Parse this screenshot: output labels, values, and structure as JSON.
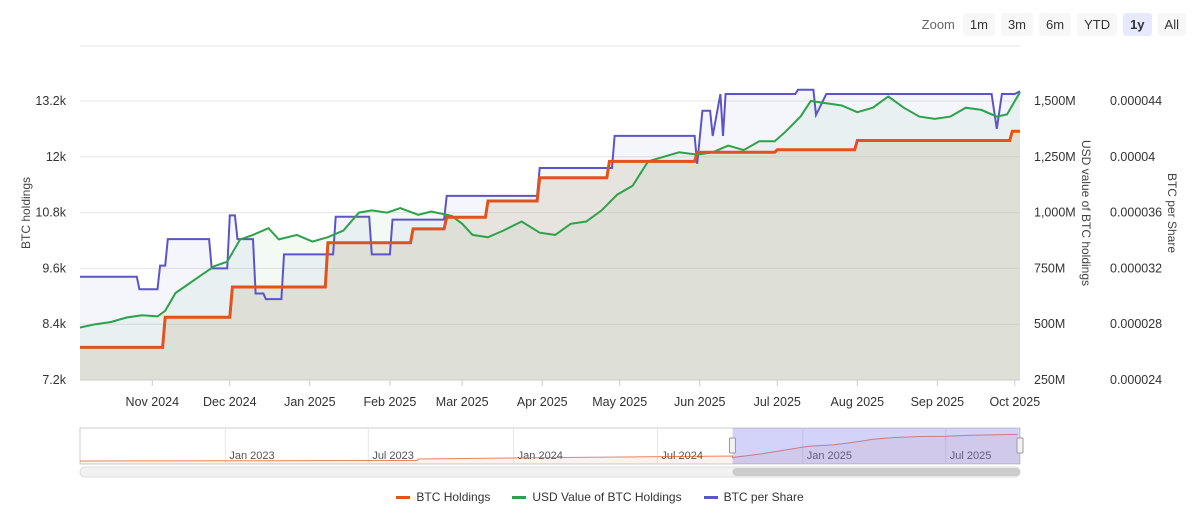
{
  "zoom": {
    "label": "Zoom",
    "buttons": [
      "1m",
      "3m",
      "6m",
      "YTD",
      "1y",
      "All"
    ],
    "active": "1y"
  },
  "chart_data": {
    "type": "line",
    "x_ticks": [
      "Nov 2024",
      "Dec 2024",
      "Jan 2025",
      "Feb 2025",
      "Mar 2025",
      "Apr 2025",
      "May 2025",
      "Jun 2025",
      "Jul 2025",
      "Aug 2025",
      "Sep 2025",
      "Oct 2025"
    ],
    "x_range": [
      "2024-10-04",
      "2025-10-03"
    ],
    "y_axes": [
      {
        "label": "BTC holdings",
        "position": "left",
        "range": [
          7200,
          13200
        ],
        "ticks": [
          "7.2k",
          "8.4k",
          "9.6k",
          "10.8k",
          "12k",
          "13.2k"
        ]
      },
      {
        "label": "USD value of BTC holdings",
        "position": "right-inner",
        "range": [
          250,
          1500
        ],
        "ticks": [
          "250M",
          "500M",
          "750M",
          "1,000M",
          "1,250M",
          "1,500M"
        ]
      },
      {
        "label": "BTC per Share",
        "position": "right-outer",
        "range": [
          2.4e-05,
          4.4e-05
        ],
        "ticks": [
          "0.000024",
          "0.000028",
          "0.000032",
          "0.000036",
          "0.00004",
          "0.000044"
        ]
      }
    ],
    "series": [
      {
        "name": "BTC Holdings",
        "color": "#e0531c",
        "axis": 0,
        "step": true,
        "points": [
          [
            "2024-10-04",
            7900
          ],
          [
            "2024-11-05",
            7900
          ],
          [
            "2024-11-06",
            8550
          ],
          [
            "2024-12-01",
            8550
          ],
          [
            "2024-12-02",
            9200
          ],
          [
            "2025-01-07",
            9200
          ],
          [
            "2025-01-08",
            10150
          ],
          [
            "2025-02-09",
            10150
          ],
          [
            "2025-02-10",
            10450
          ],
          [
            "2025-02-22",
            10450
          ],
          [
            "2025-02-23",
            10700
          ],
          [
            "2025-03-10",
            10700
          ],
          [
            "2025-03-11",
            11050
          ],
          [
            "2025-03-30",
            11050
          ],
          [
            "2025-03-31",
            11550
          ],
          [
            "2025-04-26",
            11550
          ],
          [
            "2025-04-27",
            11900
          ],
          [
            "2025-05-30",
            11900
          ],
          [
            "2025-05-31",
            12100
          ],
          [
            "2025-06-30",
            12100
          ],
          [
            "2025-07-01",
            12150
          ],
          [
            "2025-07-31",
            12150
          ],
          [
            "2025-08-01",
            12350
          ],
          [
            "2025-09-29",
            12350
          ],
          [
            "2025-09-30",
            12550
          ],
          [
            "2025-10-03",
            12550
          ]
        ]
      },
      {
        "name": "USD Value of BTC Holdings",
        "color": "#2ca24a",
        "axis": 1,
        "step": false,
        "points": [
          [
            "2024-10-04",
            485
          ],
          [
            "2024-10-10",
            500
          ],
          [
            "2024-10-16",
            510
          ],
          [
            "2024-10-22",
            530
          ],
          [
            "2024-10-28",
            540
          ],
          [
            "2024-11-03",
            535
          ],
          [
            "2024-11-06",
            560
          ],
          [
            "2024-11-10",
            640
          ],
          [
            "2024-11-15",
            680
          ],
          [
            "2024-11-20",
            720
          ],
          [
            "2024-11-25",
            760
          ],
          [
            "2024-11-30",
            780
          ],
          [
            "2024-12-05",
            880
          ],
          [
            "2024-12-10",
            900
          ],
          [
            "2024-12-16",
            930
          ],
          [
            "2024-12-20",
            880
          ],
          [
            "2024-12-27",
            900
          ],
          [
            "2025-01-02",
            870
          ],
          [
            "2025-01-08",
            890
          ],
          [
            "2025-01-14",
            920
          ],
          [
            "2025-01-20",
            1000
          ],
          [
            "2025-01-25",
            1010
          ],
          [
            "2025-01-31",
            1000
          ],
          [
            "2025-02-05",
            1020
          ],
          [
            "2025-02-12",
            990
          ],
          [
            "2025-02-17",
            1005
          ],
          [
            "2025-02-25",
            985
          ],
          [
            "2025-03-01",
            950
          ],
          [
            "2025-03-05",
            900
          ],
          [
            "2025-03-11",
            890
          ],
          [
            "2025-03-17",
            920
          ],
          [
            "2025-03-24",
            960
          ],
          [
            "2025-03-31",
            910
          ],
          [
            "2025-04-06",
            900
          ],
          [
            "2025-04-12",
            950
          ],
          [
            "2025-04-18",
            960
          ],
          [
            "2025-04-24",
            1010
          ],
          [
            "2025-04-30",
            1080
          ],
          [
            "2025-05-06",
            1120
          ],
          [
            "2025-05-12",
            1230
          ],
          [
            "2025-05-18",
            1250
          ],
          [
            "2025-05-24",
            1270
          ],
          [
            "2025-05-31",
            1260
          ],
          [
            "2025-06-06",
            1270
          ],
          [
            "2025-06-12",
            1300
          ],
          [
            "2025-06-18",
            1280
          ],
          [
            "2025-06-24",
            1320
          ],
          [
            "2025-06-30",
            1320
          ],
          [
            "2025-07-04",
            1360
          ],
          [
            "2025-07-10",
            1430
          ],
          [
            "2025-07-14",
            1500
          ],
          [
            "2025-07-20",
            1490
          ],
          [
            "2025-07-26",
            1480
          ],
          [
            "2025-08-01",
            1450
          ],
          [
            "2025-08-07",
            1470
          ],
          [
            "2025-08-13",
            1520
          ],
          [
            "2025-08-19",
            1470
          ],
          [
            "2025-08-25",
            1430
          ],
          [
            "2025-08-31",
            1420
          ],
          [
            "2025-09-06",
            1430
          ],
          [
            "2025-09-12",
            1470
          ],
          [
            "2025-09-18",
            1460
          ],
          [
            "2025-09-24",
            1430
          ],
          [
            "2025-09-28",
            1440
          ],
          [
            "2025-10-03",
            1540
          ]
        ]
      },
      {
        "name": "BTC per Share",
        "color": "#5c55c8",
        "axis": 2,
        "step": true,
        "points": [
          [
            "2024-10-04",
            3.14e-05
          ],
          [
            "2024-10-26",
            3.14e-05
          ],
          [
            "2024-10-27",
            3.05e-05
          ],
          [
            "2024-11-03",
            3.05e-05
          ],
          [
            "2024-11-04",
            3.22e-05
          ],
          [
            "2024-11-06",
            3.22e-05
          ],
          [
            "2024-11-07",
            3.41e-05
          ],
          [
            "2024-11-23",
            3.41e-05
          ],
          [
            "2024-11-24",
            3.2e-05
          ],
          [
            "2024-11-30",
            3.2e-05
          ],
          [
            "2024-12-01",
            3.58e-05
          ],
          [
            "2024-12-03",
            3.58e-05
          ],
          [
            "2024-12-04",
            3.41e-05
          ],
          [
            "2024-12-10",
            3.41e-05
          ],
          [
            "2024-12-11",
            3.02e-05
          ],
          [
            "2024-12-14",
            3.02e-05
          ],
          [
            "2024-12-15",
            2.98e-05
          ],
          [
            "2024-12-21",
            2.98e-05
          ],
          [
            "2024-12-22",
            3.3e-05
          ],
          [
            "2025-01-10",
            3.3e-05
          ],
          [
            "2025-01-11",
            3.57e-05
          ],
          [
            "2025-01-24",
            3.57e-05
          ],
          [
            "2025-01-25",
            3.3e-05
          ],
          [
            "2025-02-01",
            3.3e-05
          ],
          [
            "2025-02-02",
            3.55e-05
          ],
          [
            "2025-02-22",
            3.55e-05
          ],
          [
            "2025-02-23",
            3.72e-05
          ],
          [
            "2025-03-30",
            3.72e-05
          ],
          [
            "2025-03-31",
            3.92e-05
          ],
          [
            "2025-04-28",
            3.92e-05
          ],
          [
            "2025-04-29",
            4.15e-05
          ],
          [
            "2025-05-30",
            4.15e-05
          ],
          [
            "2025-05-31",
            3.95e-05
          ],
          [
            "2025-06-02",
            4.33e-05
          ],
          [
            "2025-06-05",
            4.33e-05
          ],
          [
            "2025-06-06",
            4.15e-05
          ],
          [
            "2025-06-09",
            4.45e-05
          ],
          [
            "2025-06-10",
            4.15e-05
          ],
          [
            "2025-06-11",
            4.45e-05
          ],
          [
            "2025-07-08",
            4.45e-05
          ],
          [
            "2025-07-09",
            4.48e-05
          ],
          [
            "2025-07-15",
            4.48e-05
          ],
          [
            "2025-07-16",
            4.3e-05
          ],
          [
            "2025-07-20",
            4.45e-05
          ],
          [
            "2025-09-22",
            4.45e-05
          ],
          [
            "2025-09-24",
            4.2e-05
          ],
          [
            "2025-09-26",
            4.45e-05
          ],
          [
            "2025-10-01",
            4.45e-05
          ],
          [
            "2025-10-03",
            4.47e-05
          ]
        ]
      }
    ],
    "navigator": {
      "x_ticks": [
        "Jan 2023",
        "Jul 2023",
        "Jan 2024",
        "Jul 2024",
        "Jan 2025",
        "Jul 2025"
      ],
      "selected_range": [
        "2024-10-04",
        "2025-10-03"
      ]
    },
    "legend": {
      "position": "bottom",
      "items": [
        {
          "name": "BTC Holdings",
          "color": "#e0531c"
        },
        {
          "name": "USD Value of BTC Holdings",
          "color": "#2ca24a"
        },
        {
          "name": "BTC per Share",
          "color": "#5c55c8"
        }
      ]
    },
    "grid": true
  }
}
